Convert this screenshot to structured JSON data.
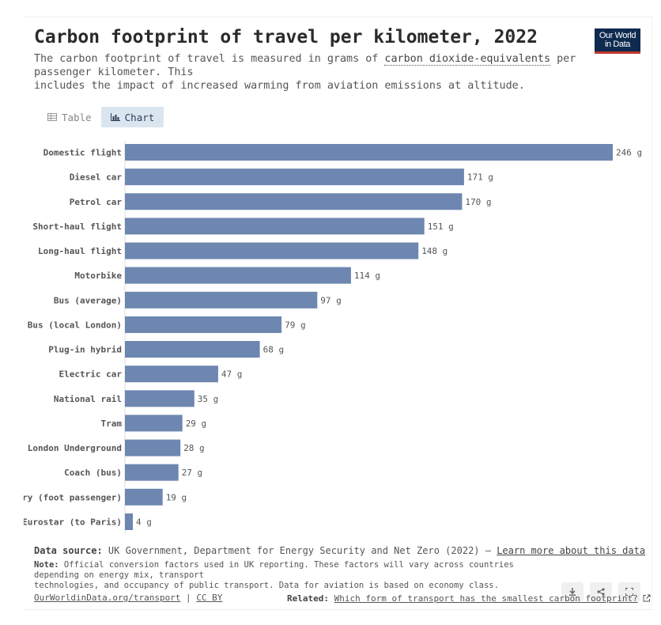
{
  "header": {
    "title": "Carbon footprint of travel per kilometer, 2022",
    "subtitle_part1": "The carbon footprint of travel is measured in grams of ",
    "subtitle_link": "carbon dioxide-equivalents",
    "subtitle_part2": " per passenger kilometer. This",
    "subtitle_part3": "includes the impact of increased warming from aviation emissions at altitude.",
    "logo_line1": "Our World",
    "logo_line2": "in Data"
  },
  "tabs": [
    {
      "label": "Table",
      "icon": "table-icon",
      "active": false
    },
    {
      "label": "Chart",
      "icon": "bar-chart-icon",
      "active": true
    }
  ],
  "chart_data": {
    "type": "bar",
    "orientation": "horizontal",
    "categories": [
      "Domestic flight",
      "Diesel car",
      "Petrol car",
      "Short-haul flight",
      "Long-haul flight",
      "Motorbike",
      "Bus (average)",
      "Bus (local London)",
      "Plug-in hybrid",
      "Electric car",
      "National rail",
      "Tram",
      "London Underground",
      "Coach (bus)",
      "Ferry (foot passenger)",
      "Eurostar (to Paris)"
    ],
    "values": [
      246,
      171,
      170,
      151,
      148,
      114,
      97,
      79,
      68,
      47,
      35,
      29,
      28,
      27,
      19,
      4
    ],
    "value_suffix": " g",
    "xlim": [
      0,
      246
    ],
    "bar_color": "#6d87b0"
  },
  "footer": {
    "source_label": "Data source:",
    "source_text": " UK Government, Department for Energy Security and Net Zero (2022) – ",
    "source_link": "Learn more about this data",
    "note_label": "Note:",
    "note_line1": " Official conversion factors used in UK reporting. These factors will vary across countries depending on energy mix, transport",
    "note_line2": "technologies, and occupancy of public transport. Data for aviation is based on economy class.",
    "site_link": "OurWorldinData.org/transport",
    "separator": " | ",
    "license_link": "CC BY",
    "related_label": "Related:",
    "related_link": "Which form of transport has the smallest carbon footprint?"
  },
  "actions": [
    {
      "name": "download-button",
      "icon": "download-icon"
    },
    {
      "name": "share-button",
      "icon": "share-icon"
    },
    {
      "name": "expand-button",
      "icon": "expand-icon"
    }
  ]
}
